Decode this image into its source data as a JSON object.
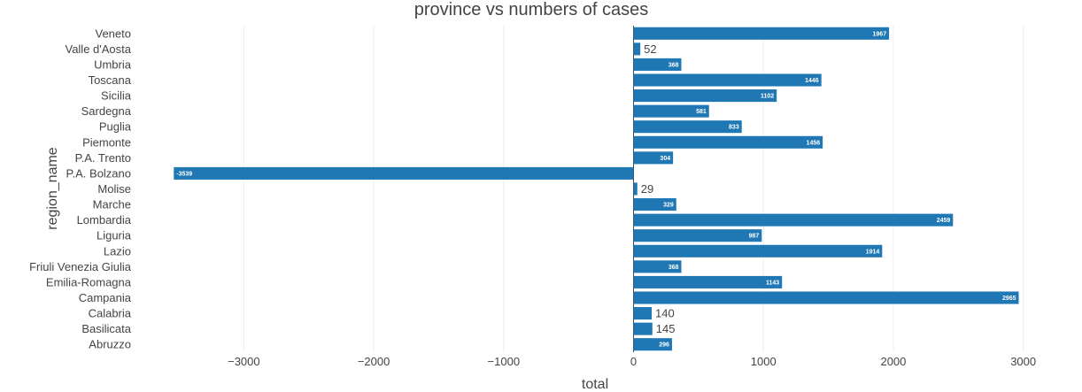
{
  "chart_data": {
    "type": "bar",
    "orientation": "horizontal",
    "title": "province vs numbers of cases",
    "xlabel": "total",
    "ylabel": "region_name",
    "xlim": [
      -3800,
      3200
    ],
    "xticks": [
      -3000,
      -2000,
      -1000,
      0,
      1000,
      2000,
      3000
    ],
    "xtick_labels": [
      "−3000",
      "−2000",
      "−1000",
      "0",
      "1000",
      "2000",
      "3000"
    ],
    "grid": "vertical",
    "categories": [
      "Abruzzo",
      "Basilicata",
      "Calabria",
      "Campania",
      "Emilia-Romagna",
      "Friuli Venezia Giulia",
      "Lazio",
      "Liguria",
      "Lombardia",
      "Marche",
      "Molise",
      "P.A. Bolzano",
      "P.A. Trento",
      "Piemonte",
      "Puglia",
      "Sardegna",
      "Sicilia",
      "Toscana",
      "Umbria",
      "Valle d'Aosta",
      "Veneto"
    ],
    "values": [
      296,
      145,
      140,
      2965,
      1143,
      368,
      1914,
      987,
      2459,
      329,
      29,
      -3539,
      304,
      1456,
      833,
      581,
      1102,
      1446,
      368,
      52,
      1967
    ],
    "colors": {
      "bar": "#1f77b4",
      "grid": "#eeeeee",
      "zeroline": "#444444"
    }
  }
}
